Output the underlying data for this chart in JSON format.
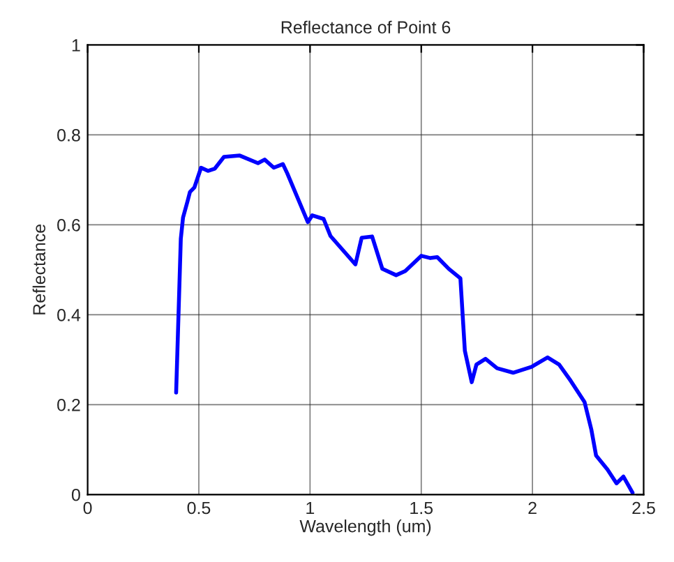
{
  "chart_data": {
    "type": "line",
    "title": "Reflectance of Point 6",
    "xlabel": "Wavelength (um)",
    "ylabel": "Reflectance",
    "series": [
      {
        "color": "#0000ff",
        "x": [
          0.398,
          0.419,
          0.429,
          0.449,
          0.46,
          0.48,
          0.51,
          0.541,
          0.572,
          0.613,
          0.684,
          0.766,
          0.796,
          0.837,
          0.878,
          0.898,
          0.99,
          1.01,
          1.061,
          1.092,
          1.204,
          1.232,
          1.279,
          1.325,
          1.387,
          1.428,
          1.5,
          1.541,
          1.572,
          1.624,
          1.676,
          1.696,
          1.727,
          1.748,
          1.789,
          1.841,
          1.913,
          1.996,
          2.068,
          2.12,
          2.172,
          2.234,
          2.265,
          2.286,
          2.337,
          2.378,
          2.409,
          2.45
        ],
        "values": [
          0.227,
          0.569,
          0.616,
          0.652,
          0.673,
          0.683,
          0.727,
          0.72,
          0.725,
          0.751,
          0.754,
          0.737,
          0.745,
          0.727,
          0.735,
          0.714,
          0.606,
          0.621,
          0.613,
          0.575,
          0.512,
          0.571,
          0.574,
          0.502,
          0.488,
          0.497,
          0.531,
          0.526,
          0.528,
          0.502,
          0.481,
          0.32,
          0.25,
          0.289,
          0.302,
          0.281,
          0.271,
          0.284,
          0.305,
          0.289,
          0.253,
          0.206,
          0.144,
          0.087,
          0.056,
          0.025,
          0.04,
          0.004
        ]
      }
    ],
    "xlim": [
      0,
      2.5
    ],
    "ylim": [
      0,
      1
    ],
    "xticks": [
      0,
      0.5,
      1,
      1.5,
      2,
      2.5
    ],
    "yticks": [
      0,
      0.2,
      0.4,
      0.6,
      0.8,
      1
    ],
    "grid": true,
    "line_style": "solid"
  }
}
